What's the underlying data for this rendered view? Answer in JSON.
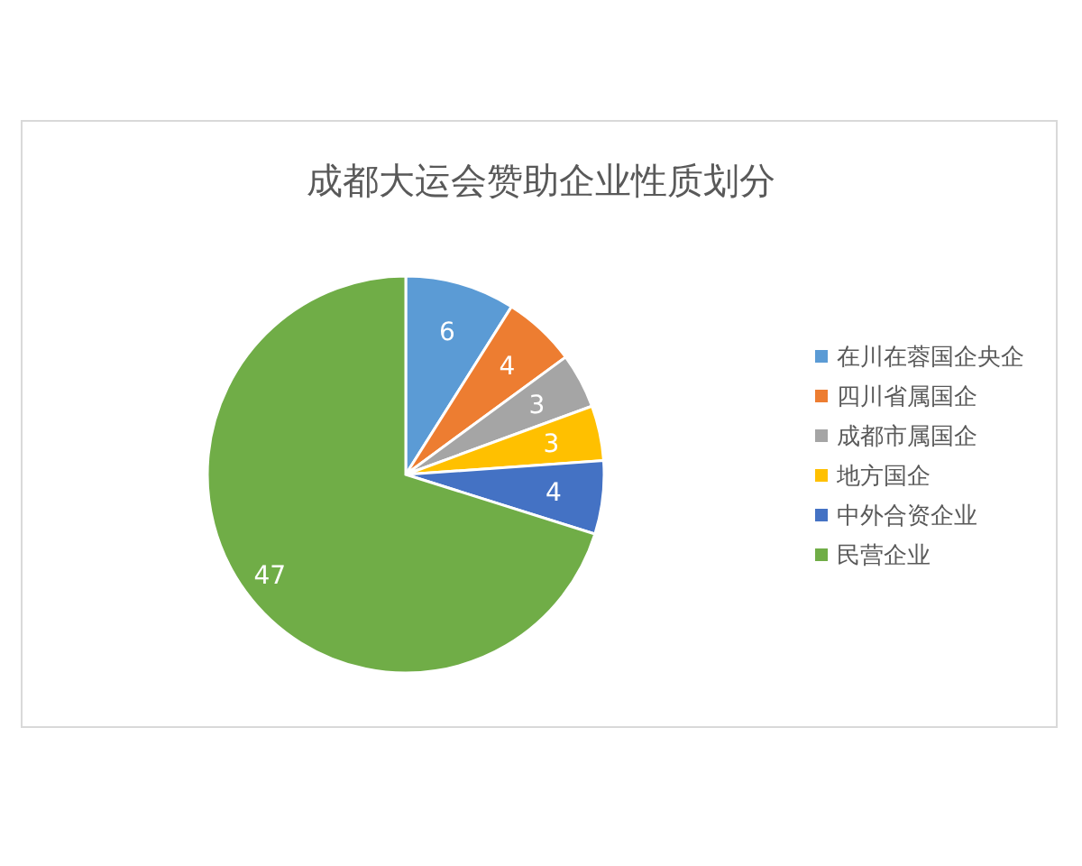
{
  "chart_data": {
    "type": "pie",
    "title": "成都大运会赞助企业性质划分",
    "categories": [
      "在川在蓉国企央企",
      "四川省属国企",
      "成都市属国企",
      "地方国企",
      "中外合资企业",
      "民营企业"
    ],
    "values": [
      6,
      4,
      3,
      3,
      4,
      47
    ],
    "colors": [
      "#5b9bd5",
      "#ed7d31",
      "#a5a5a5",
      "#ffc000",
      "#4472c4",
      "#70ad47"
    ],
    "data_labels": true,
    "legend": "right"
  }
}
